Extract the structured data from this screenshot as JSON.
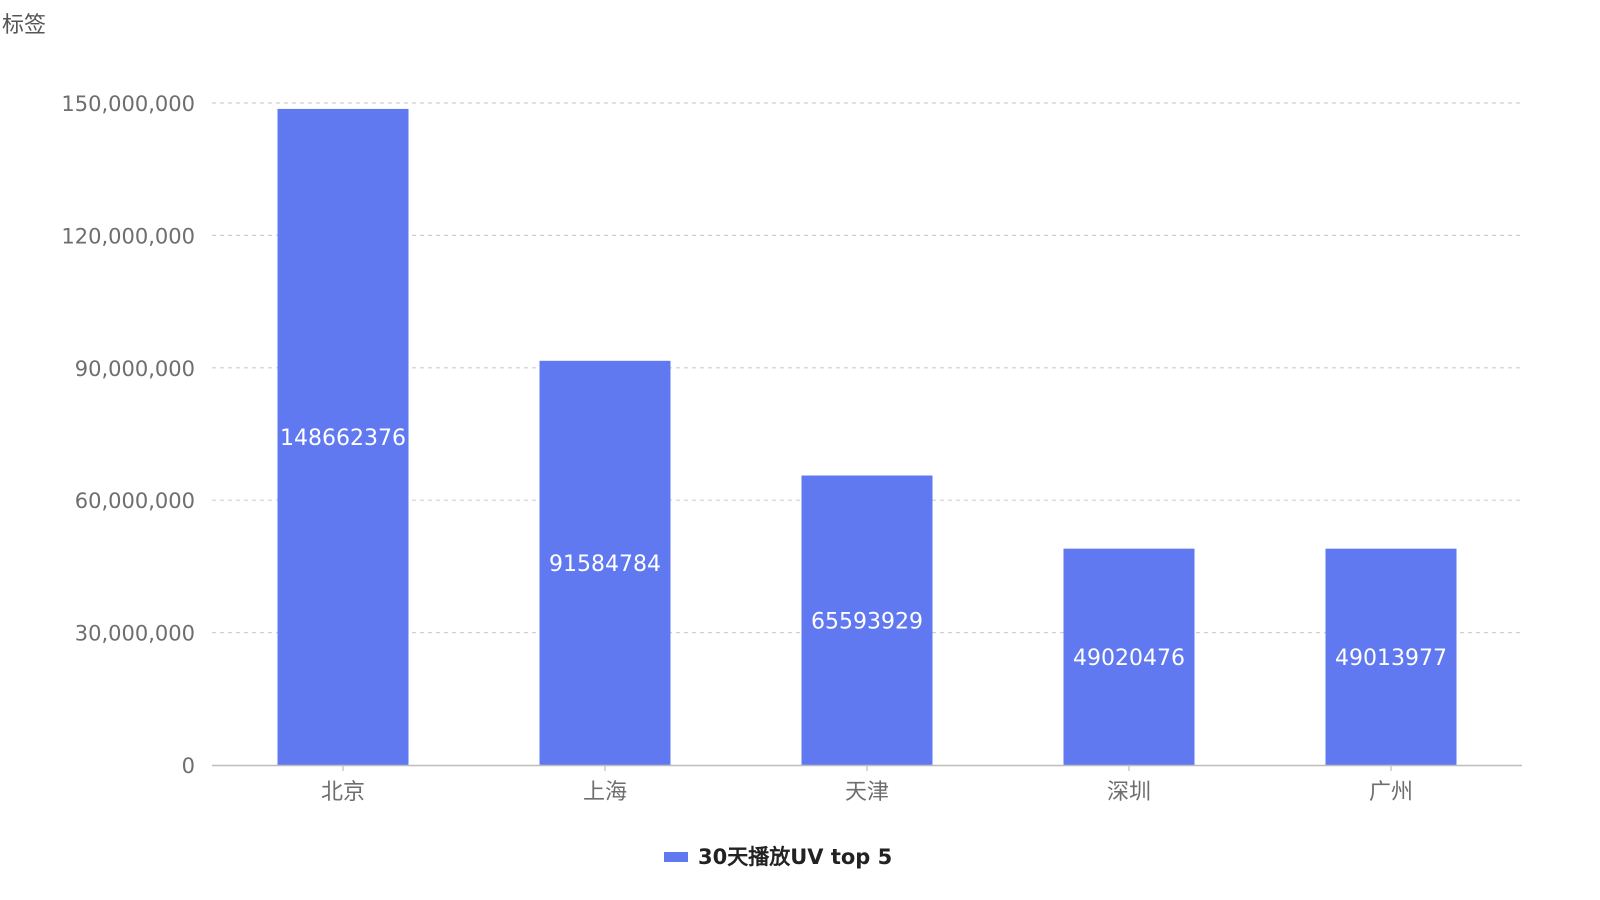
{
  "chart_data": {
    "type": "bar",
    "title": "",
    "xlabel": "",
    "ylabel": "标签",
    "categories": [
      "北京",
      "上海",
      "天津",
      "深圳",
      "广州"
    ],
    "series": [
      {
        "name": "30天播放UV top 5",
        "values": [
          148662376,
          91584784,
          65593929,
          49020476,
          49013977
        ],
        "color": "#6078f0"
      }
    ],
    "data_labels": [
      "148662376",
      "91584784",
      "65593929",
      "49020476",
      "49013977"
    ],
    "ylim": [
      0,
      150000000
    ],
    "yticks": [
      0,
      30000000,
      60000000,
      90000000,
      120000000,
      150000000
    ],
    "ytick_labels": [
      "0",
      "30,000,000",
      "60,000,000",
      "90,000,000",
      "120,000,000",
      "150,000,000"
    ],
    "grid": true,
    "legend_position": "bottom-center"
  }
}
